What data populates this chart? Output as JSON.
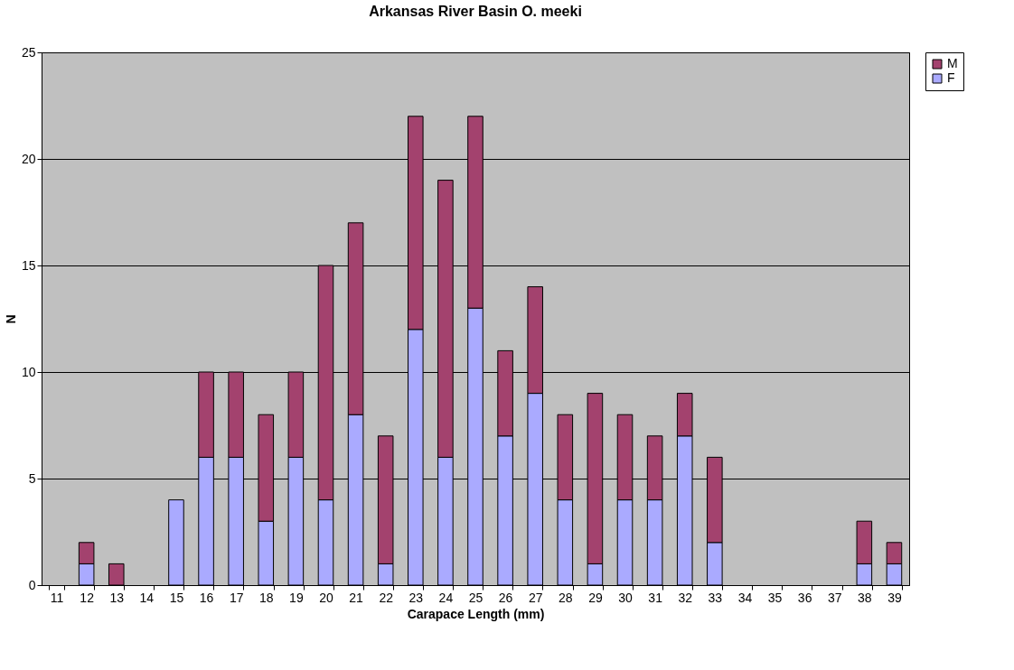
{
  "chart_data": {
    "type": "bar",
    "title": "Arkansas River Basin O. meeki",
    "xlabel": "Carapace Length (mm)",
    "ylabel": "N",
    "categories": [
      "11",
      "12",
      "13",
      "14",
      "15",
      "16",
      "17",
      "18",
      "19",
      "20",
      "21",
      "22",
      "23",
      "24",
      "25",
      "26",
      "27",
      "28",
      "29",
      "30",
      "31",
      "32",
      "33",
      "34",
      "35",
      "36",
      "37",
      "38",
      "39"
    ],
    "stacked": true,
    "series": [
      {
        "name": "F",
        "color": "#aaaaff",
        "values": [
          0,
          1,
          0,
          0,
          4,
          6,
          6,
          3,
          6,
          4,
          8,
          1,
          12,
          6,
          13,
          7,
          9,
          4,
          1,
          4,
          4,
          7,
          2,
          0,
          0,
          0,
          0,
          1,
          1
        ]
      },
      {
        "name": "M",
        "color": "#a3426e",
        "values": [
          0,
          1,
          1,
          0,
          0,
          4,
          4,
          5,
          4,
          11,
          9,
          6,
          10,
          13,
          9,
          4,
          5,
          4,
          8,
          4,
          3,
          2,
          4,
          0,
          0,
          0,
          0,
          2,
          1
        ]
      }
    ],
    "ylim": [
      0,
      25
    ],
    "yticks": [
      0,
      5,
      10,
      15,
      20,
      25
    ],
    "grid": "y",
    "legend": "right"
  }
}
